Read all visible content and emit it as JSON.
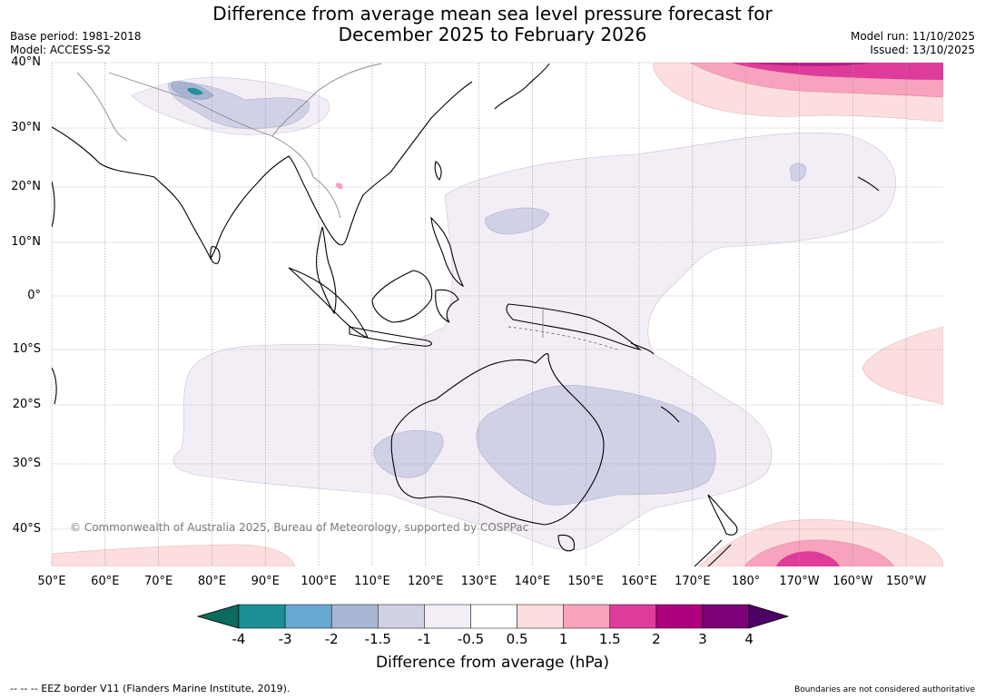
{
  "title": {
    "line1": "Difference from average mean sea level pressure forecast for",
    "line2": "December 2025 to February 2026"
  },
  "meta": {
    "base_period": "Base period: 1981-2018",
    "model": "Model: ACCESS-S2",
    "model_run": "Model run: 11/10/2025",
    "issued": "Issued: 13/10/2025"
  },
  "map": {
    "lat_labels": [
      "40°N",
      "30°N",
      "20°N",
      "10°N",
      "0°",
      "10°S",
      "20°S",
      "30°S",
      "40°S"
    ],
    "lon_labels": [
      "50°E",
      "60°E",
      "70°E",
      "80°E",
      "90°E",
      "100°E",
      "110°E",
      "120°E",
      "130°E",
      "140°E",
      "150°E",
      "160°E",
      "170°E",
      "180°",
      "170°W",
      "160°W",
      "150°W"
    ],
    "copyright": "© Commonwealth of Australia 2025, Bureau of Meteorology, supported by COSPPac",
    "anomaly_colors": {
      "neg_0_5_to_1": "#f3eef6",
      "neg_1_to_1_5": "#d0d1e6",
      "neg_1_5_to_2": "#a6b4d2",
      "neg_3_to_4": "#238f96",
      "pos_0_5_to_1": "#fddede",
      "pos_1_to_1_5": "#f7a3bd",
      "pos_1_5_to_2": "#de3c9a"
    }
  },
  "colorbar": {
    "ticks": [
      "-4",
      "-3",
      "-2",
      "-1.5",
      "-1",
      "-0.5",
      "0.5",
      "1",
      "1.5",
      "2",
      "3",
      "4"
    ],
    "colors": [
      "#1a8f96",
      "#67a8d0",
      "#a7b6d3",
      "#d0d1e5",
      "#f3eef6",
      "#ffffff",
      "#fddede",
      "#f9a3bc",
      "#de3c9a",
      "#ae017e",
      "#7a0177"
    ],
    "low_extend_color": "#0b6b5c",
    "high_extend_color": "#4d0066",
    "label": "Difference from average (hPa)"
  },
  "footer": {
    "eez": "--  --  -- EEZ border V11 (Flanders Marine Institute, 2019).",
    "boundaries": "Boundaries are not considered authoritative"
  }
}
